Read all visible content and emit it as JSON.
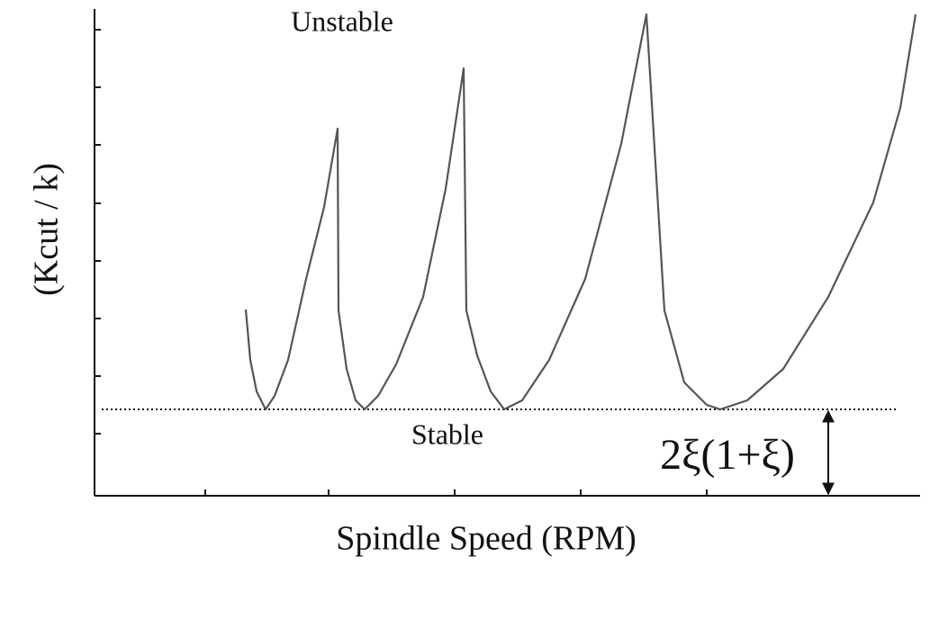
{
  "chart_data": {
    "type": "line",
    "y_label": "(Kcut / k)",
    "x_label": "Spindle Speed (RPM)",
    "annotations": [
      "Unstable",
      "Stable"
    ],
    "reference_line": {
      "value": 96,
      "label": "2ξ(1+ξ)"
    },
    "x": [
      168,
      173,
      180,
      190,
      200,
      215,
      235,
      255,
      270,
      271,
      280,
      290,
      300,
      315,
      335,
      365,
      390,
      410,
      413,
      425,
      440,
      455,
      475,
      505,
      545,
      585,
      613,
      633,
      655,
      680,
      695,
      725,
      765,
      815,
      865,
      895,
      912
    ],
    "series": [
      {
        "color": "#555555",
        "values": [
          207,
          151,
          116,
          96,
          111,
          151,
          241,
          321,
          408,
          206,
          141,
          106,
          96,
          111,
          146,
          221,
          341,
          475,
          206,
          156,
          116,
          96,
          106,
          151,
          241,
          391,
          535,
          206,
          126,
          101,
          96,
          106,
          141,
          221,
          326,
          431,
          535
        ]
      }
    ],
    "xlim": [
      0,
      915
    ],
    "ylim": [
      0,
      545
    ],
    "xticks": [
      123,
      260,
      400,
      540,
      680
    ],
    "yticks": [
      69,
      133,
      197,
      261,
      325,
      390,
      454,
      518
    ]
  }
}
